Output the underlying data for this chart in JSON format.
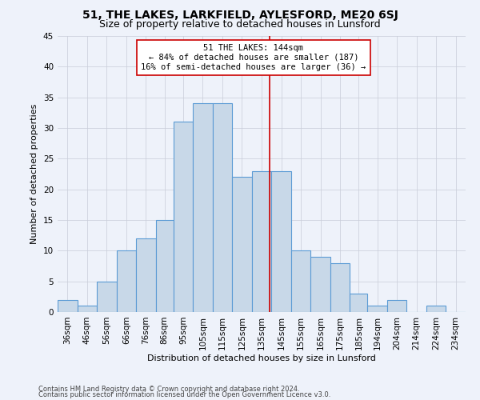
{
  "title": "51, THE LAKES, LARKFIELD, AYLESFORD, ME20 6SJ",
  "subtitle": "Size of property relative to detached houses in Lunsford",
  "xlabel_bottom": "Distribution of detached houses by size in Lunsford",
  "ylabel": "Number of detached properties",
  "footer1": "Contains HM Land Registry data © Crown copyright and database right 2024.",
  "footer2": "Contains public sector information licensed under the Open Government Licence v3.0.",
  "bin_labels": [
    "36sqm",
    "46sqm",
    "56sqm",
    "66sqm",
    "76sqm",
    "86sqm",
    "95sqm",
    "105sqm",
    "115sqm",
    "125sqm",
    "135sqm",
    "145sqm",
    "155sqm",
    "165sqm",
    "175sqm",
    "185sqm",
    "194sqm",
    "204sqm",
    "214sqm",
    "224sqm",
    "234sqm"
  ],
  "bar_values": [
    2,
    1,
    5,
    10,
    12,
    15,
    31,
    34,
    34,
    22,
    23,
    23,
    10,
    9,
    8,
    3,
    1,
    2,
    0,
    1,
    0
  ],
  "bin_edges": [
    36,
    46,
    56,
    66,
    76,
    86,
    95,
    105,
    115,
    125,
    135,
    145,
    155,
    165,
    175,
    185,
    194,
    204,
    214,
    224,
    234,
    244
  ],
  "bar_color": "#c8d8e8",
  "bar_edge_color": "#5b9bd5",
  "property_size": 144,
  "vline_color": "#cc0000",
  "annotation_text": "51 THE LAKES: 144sqm\n← 84% of detached houses are smaller (187)\n16% of semi-detached houses are larger (36) →",
  "annotation_box_color": "#ffffff",
  "annotation_box_edge": "#cc0000",
  "ylim": [
    0,
    45
  ],
  "yticks": [
    0,
    5,
    10,
    15,
    20,
    25,
    30,
    35,
    40,
    45
  ],
  "bg_color": "#eef2fa",
  "grid_color": "#c8ccd8",
  "title_fontsize": 10,
  "subtitle_fontsize": 9,
  "axis_label_fontsize": 8,
  "tick_fontsize": 7.5,
  "footer_fontsize": 6,
  "annotation_fontsize": 7.5
}
